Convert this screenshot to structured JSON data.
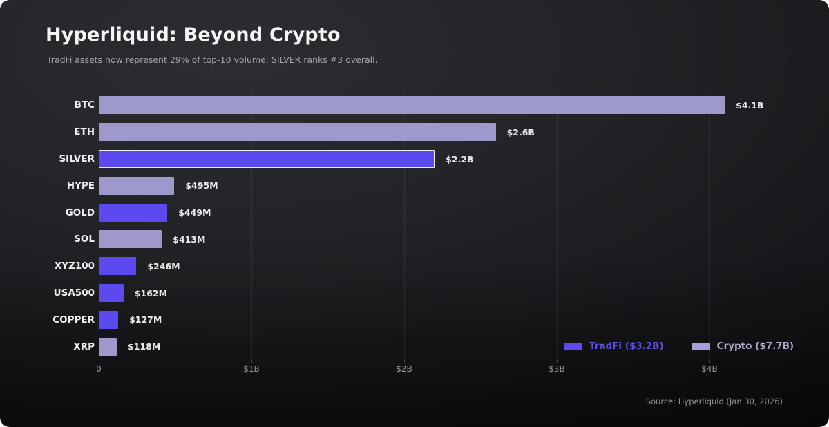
{
  "header": {
    "title": "Hyperliquid: Beyond Crypto",
    "subtitle": "TradFi assets now represent 29% of top-10 volume; SILVER ranks #3 overall."
  },
  "colors": {
    "tradfi": "#5b4af0",
    "crypto": "#9d99cc",
    "highlight_outline": "#ededf2",
    "legend_tradfi_text": "#5b52e0",
    "legend_crypto_text": "#aeabcd",
    "legend_crypto_swatch": "#a5a1d8"
  },
  "legend": [
    {
      "name": "tradfi",
      "label": "TradFi ($3.2B)"
    },
    {
      "name": "crypto",
      "label": "Crypto ($7.7B)"
    }
  ],
  "chart_data": {
    "type": "bar",
    "orientation": "horizontal",
    "title": "Hyperliquid: Beyond Crypto",
    "categories": [
      "BTC",
      "ETH",
      "SILVER",
      "HYPE",
      "GOLD",
      "SOL",
      "XYZ100",
      "USA500",
      "COPPER",
      "XRP"
    ],
    "values_billions": [
      4.1,
      2.6,
      2.2,
      0.495,
      0.449,
      0.413,
      0.246,
      0.162,
      0.127,
      0.118
    ],
    "value_labels": [
      "$4.1B",
      "$2.6B",
      "$2.2B",
      "$495M",
      "$449M",
      "$413M",
      "$246M",
      "$162M",
      "$127M",
      "$118M"
    ],
    "series_by_bar": [
      "crypto",
      "crypto",
      "tradfi",
      "crypto",
      "tradfi",
      "crypto",
      "tradfi",
      "tradfi",
      "tradfi",
      "crypto"
    ],
    "highlighted_category": "SILVER",
    "series_totals": {
      "tradfi": "$3.2B",
      "crypto": "$7.7B"
    },
    "x_ticks": [
      {
        "value": 0,
        "label": "0"
      },
      {
        "value": 1,
        "label": "$1B"
      },
      {
        "value": 2,
        "label": "$2B"
      },
      {
        "value": 3,
        "label": "$3B"
      },
      {
        "value": 4,
        "label": "$4B"
      }
    ],
    "xlim": [
      0,
      4.3
    ],
    "grid": "vertical-only",
    "legend_position": "bottom-right"
  },
  "footer": {
    "source": "Source: Hyperliquid (Jan 30, 2026)"
  }
}
